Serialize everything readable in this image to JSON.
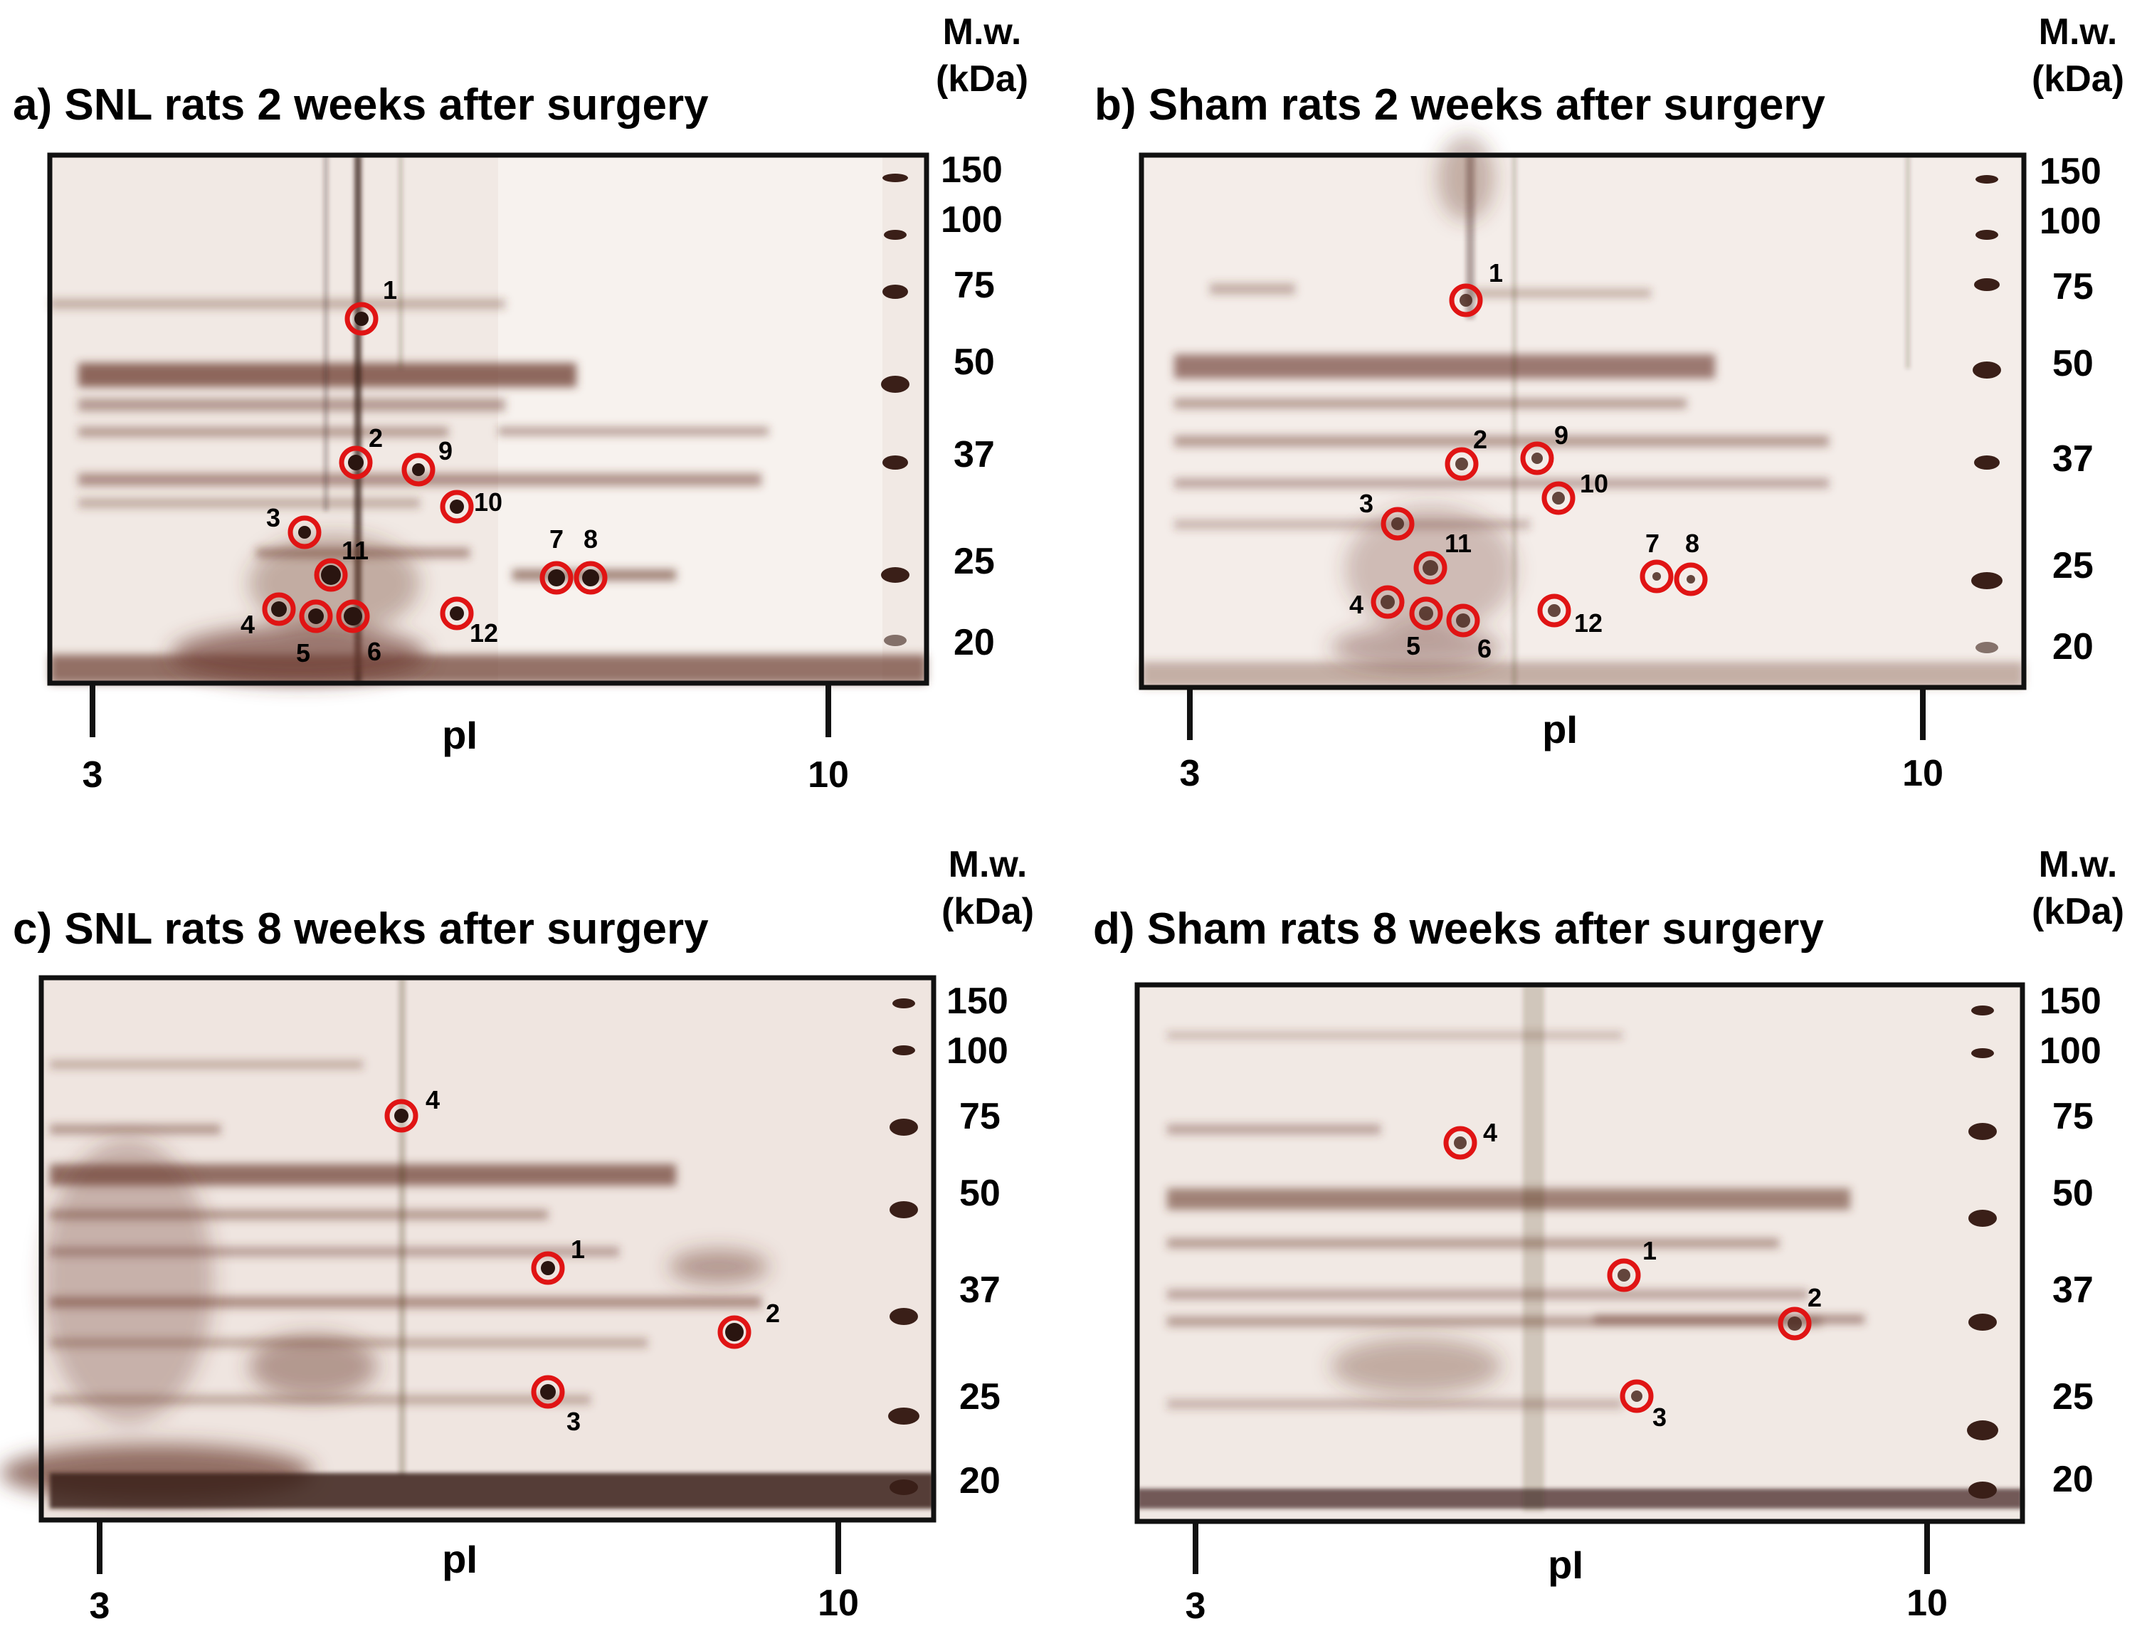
{
  "figure": {
    "panels": [
      {
        "id": "a",
        "title": "a) SNL rats 2 weeks after surgery",
        "mw_header": [
          "M.w.",
          "(kDa)"
        ],
        "mw_ticks": [
          "150",
          "100",
          "75",
          "50",
          "37",
          "25",
          "20"
        ],
        "ph_ticks": [
          "3",
          "10"
        ],
        "axis_label": "pI",
        "spot_labels": [
          "1",
          "2",
          "9",
          "10",
          "3",
          "11",
          "7",
          "8",
          "4",
          "5",
          "6",
          "12"
        ]
      },
      {
        "id": "b",
        "title": "b) Sham rats 2 weeks after surgery",
        "mw_header": [
          "M.w.",
          "(kDa)"
        ],
        "mw_ticks": [
          "150",
          "100",
          "75",
          "50",
          "37",
          "25",
          "20"
        ],
        "ph_ticks": [
          "3",
          "10"
        ],
        "axis_label": "pI",
        "spot_labels": [
          "1",
          "2",
          "9",
          "10",
          "3",
          "11",
          "7",
          "8",
          "4",
          "5",
          "6",
          "12"
        ]
      },
      {
        "id": "c",
        "title": "c) SNL rats 8 weeks after surgery",
        "mw_header": [
          "M.w.",
          "(kDa)"
        ],
        "mw_ticks": [
          "150",
          "100",
          "75",
          "50",
          "37",
          "25",
          "20"
        ],
        "ph_ticks": [
          "3",
          "10"
        ],
        "axis_label": "pI",
        "spot_labels": [
          "4",
          "1",
          "2",
          "3"
        ]
      },
      {
        "id": "d",
        "title": "d) Sham rats 8 weeks after surgery",
        "mw_header": [
          "M.w.",
          "(kDa)"
        ],
        "mw_ticks": [
          "150",
          "100",
          "75",
          "50",
          "37",
          "25",
          "20"
        ],
        "ph_ticks": [
          "3",
          "10"
        ],
        "axis_label": "pI",
        "spot_labels": [
          "4",
          "1",
          "2",
          "3"
        ]
      }
    ],
    "colors": {
      "gel_background": "#f1e9e4",
      "protein_stain": "#3a1f18",
      "band_stain": "#6b3a2e",
      "spot_circle": "#e01414",
      "frame": "#111111"
    }
  }
}
